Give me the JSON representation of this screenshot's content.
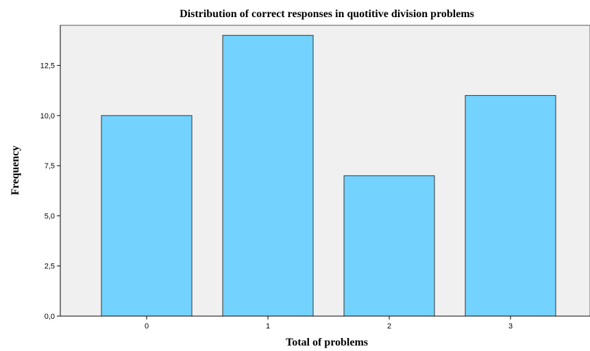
{
  "chart_data": {
    "type": "bar",
    "title": "Distribution of correct responses in quotitive division problems",
    "xlabel": "Total of problems",
    "ylabel": "Frequency",
    "categories": [
      "0",
      "1",
      "2",
      "3"
    ],
    "values": [
      10,
      14,
      7,
      11
    ],
    "ylim": [
      0,
      14.5
    ],
    "yticks": [
      0,
      2.5,
      5,
      7.5,
      10,
      12.5
    ],
    "ytick_labels": [
      "0,0",
      "2,5",
      "5,0",
      "7,5",
      "10,0",
      "12,5"
    ],
    "grid": false,
    "legend": "none",
    "colors": {
      "bar_fill": "#73D2FE",
      "bar_stroke": "#333333",
      "plot_background": "#F0F0F0",
      "axis": "#000000"
    }
  }
}
